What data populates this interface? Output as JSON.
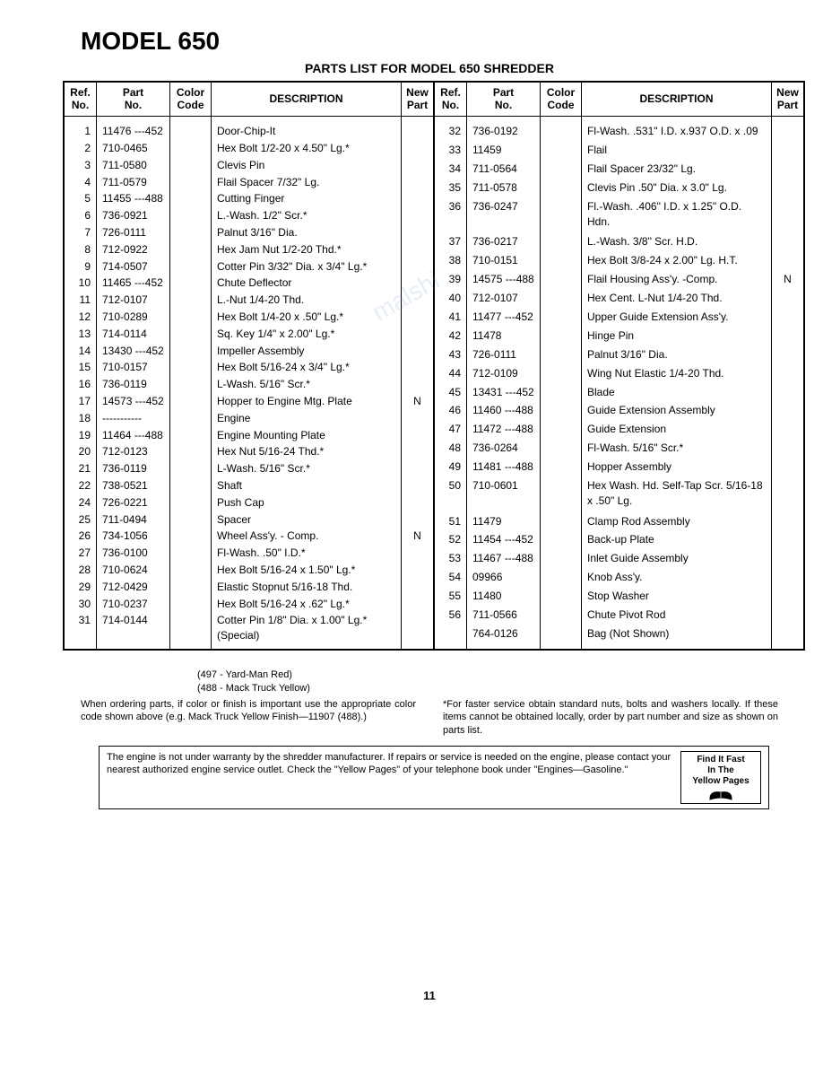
{
  "title": "MODEL 650",
  "subtitle": "PARTS LIST FOR MODEL 650 SHREDDER",
  "headers": {
    "ref": "Ref.\nNo.",
    "part": "Part\nNo.",
    "color": "Color\nCode",
    "desc": "DESCRIPTION",
    "newp": "New\nPart"
  },
  "left_rows": [
    {
      "ref": "1",
      "part": "11476 ---452",
      "color": "",
      "desc": "Door-Chip-It",
      "newp": ""
    },
    {
      "ref": "2",
      "part": "710-0465",
      "color": "",
      "desc": "Hex Bolt 1/2-20 x 4.50\" Lg.*",
      "newp": ""
    },
    {
      "ref": "3",
      "part": "711-0580",
      "color": "",
      "desc": "Clevis Pin",
      "newp": ""
    },
    {
      "ref": "4",
      "part": "711-0579",
      "color": "",
      "desc": "Flail Spacer 7/32\" Lg.",
      "newp": ""
    },
    {
      "ref": "5",
      "part": "11455 ---488",
      "color": "",
      "desc": "Cutting Finger",
      "newp": ""
    },
    {
      "ref": "6",
      "part": "736-0921",
      "color": "",
      "desc": "L.-Wash. 1/2\" Scr.*",
      "newp": ""
    },
    {
      "ref": "7",
      "part": "726-0111",
      "color": "",
      "desc": "Palnut 3/16\" Dia.",
      "newp": ""
    },
    {
      "ref": "8",
      "part": "712-0922",
      "color": "",
      "desc": "Hex Jam Nut 1/2-20 Thd.*",
      "newp": ""
    },
    {
      "ref": "9",
      "part": "714-0507",
      "color": "",
      "desc": "Cotter Pin 3/32\" Dia. x 3/4\" Lg.*",
      "newp": ""
    },
    {
      "ref": "10",
      "part": "11465 ---452",
      "color": "",
      "desc": "Chute Deflector",
      "newp": ""
    },
    {
      "ref": "11",
      "part": "712-0107",
      "color": "",
      "desc": "L.-Nut 1/4-20 Thd.",
      "newp": ""
    },
    {
      "ref": "12",
      "part": "710-0289",
      "color": "",
      "desc": "Hex Bolt 1/4-20 x .50\" Lg.*",
      "newp": ""
    },
    {
      "ref": "13",
      "part": "714-0114",
      "color": "",
      "desc": "Sq. Key 1/4\" x 2.00\" Lg.*",
      "newp": ""
    },
    {
      "ref": "14",
      "part": "13430 ---452",
      "color": "",
      "desc": "Impeller Assembly",
      "newp": ""
    },
    {
      "ref": "15",
      "part": "710-0157",
      "color": "",
      "desc": "Hex Bolt 5/16-24 x 3/4\" Lg.*",
      "newp": ""
    },
    {
      "ref": "16",
      "part": "736-0119",
      "color": "",
      "desc": "L-Wash. 5/16\" Scr.*",
      "newp": ""
    },
    {
      "ref": "17",
      "part": "14573 ---452",
      "color": "",
      "desc": "Hopper to Engine Mtg. Plate",
      "newp": "N"
    },
    {
      "ref": "18",
      "part": "-----------",
      "color": "",
      "desc": "Engine",
      "newp": ""
    },
    {
      "ref": "19",
      "part": "11464 ---488",
      "color": "",
      "desc": "Engine Mounting Plate",
      "newp": ""
    },
    {
      "ref": "20",
      "part": "712-0123",
      "color": "",
      "desc": "Hex Nut 5/16-24 Thd.*",
      "newp": ""
    },
    {
      "ref": "21",
      "part": "736-0119",
      "color": "",
      "desc": "L-Wash. 5/16\" Scr.*",
      "newp": ""
    },
    {
      "ref": "22",
      "part": "738-0521",
      "color": "",
      "desc": "Shaft",
      "newp": ""
    },
    {
      "ref": "24",
      "part": "726-0221",
      "color": "",
      "desc": "Push Cap",
      "newp": ""
    },
    {
      "ref": "25",
      "part": "711-0494",
      "color": "",
      "desc": "Spacer",
      "newp": ""
    },
    {
      "ref": "26",
      "part": "734-1056",
      "color": "",
      "desc": "Wheel Ass'y. - Comp.",
      "newp": "N"
    },
    {
      "ref": "27",
      "part": "736-0100",
      "color": "",
      "desc": "Fl-Wash. .50\" I.D.*",
      "newp": ""
    },
    {
      "ref": "28",
      "part": "710-0624",
      "color": "",
      "desc": "Hex Bolt 5/16-24 x 1.50\" Lg.*",
      "newp": ""
    },
    {
      "ref": "29",
      "part": "712-0429",
      "color": "",
      "desc": "Elastic Stopnut 5/16-18 Thd.",
      "newp": ""
    },
    {
      "ref": "30",
      "part": "710-0237",
      "color": "",
      "desc": "Hex Bolt 5/16-24 x .62\" Lg.*",
      "newp": ""
    },
    {
      "ref": "31",
      "part": "714-0144",
      "color": "",
      "desc": "Cotter Pin 1/8\" Dia. x 1.00\" Lg.* (Special)",
      "newp": ""
    }
  ],
  "right_rows": [
    {
      "ref": "32",
      "part": "736-0192",
      "color": "",
      "desc": "Fl-Wash. .531\" I.D. x.937 O.D. x .09",
      "newp": ""
    },
    {
      "ref": "33",
      "part": "11459",
      "color": "",
      "desc": "Flail",
      "newp": ""
    },
    {
      "ref": "34",
      "part": "711-0564",
      "color": "",
      "desc": "Flail Spacer 23/32\" Lg.",
      "newp": ""
    },
    {
      "ref": "35",
      "part": "711-0578",
      "color": "",
      "desc": "Clevis Pin .50\" Dia. x 3.0\" Lg.",
      "newp": ""
    },
    {
      "ref": "36",
      "part": "736-0247",
      "color": "",
      "desc": "Fl.-Wash. .406\" I.D. x 1.25\" O.D. Hdn.",
      "newp": ""
    },
    {
      "ref": "37",
      "part": "736-0217",
      "color": "",
      "desc": "L.-Wash. 3/8\" Scr. H.D.",
      "newp": ""
    },
    {
      "ref": "38",
      "part": "710-0151",
      "color": "",
      "desc": "Hex Bolt 3/8-24 x 2.00\" Lg. H.T.",
      "newp": ""
    },
    {
      "ref": "39",
      "part": "14575 ---488",
      "color": "",
      "desc": "Flail Housing Ass'y. -Comp.",
      "newp": "N"
    },
    {
      "ref": "40",
      "part": "712-0107",
      "color": "",
      "desc": "Hex Cent. L-Nut 1/4-20 Thd.",
      "newp": ""
    },
    {
      "ref": "41",
      "part": "11477 ---452",
      "color": "",
      "desc": "Upper Guide Extension Ass'y.",
      "newp": ""
    },
    {
      "ref": "42",
      "part": "11478",
      "color": "",
      "desc": "Hinge Pin",
      "newp": ""
    },
    {
      "ref": "43",
      "part": "726-0111",
      "color": "",
      "desc": "Palnut 3/16\" Dia.",
      "newp": ""
    },
    {
      "ref": "44",
      "part": "712-0109",
      "color": "",
      "desc": "Wing Nut Elastic 1/4-20 Thd.",
      "newp": ""
    },
    {
      "ref": "45",
      "part": "13431 ---452",
      "color": "",
      "desc": "Blade",
      "newp": ""
    },
    {
      "ref": "46",
      "part": "11460 ---488",
      "color": "",
      "desc": "Guide Extension Assembly",
      "newp": ""
    },
    {
      "ref": "47",
      "part": "11472 ---488",
      "color": "",
      "desc": "Guide Extension",
      "newp": ""
    },
    {
      "ref": "48",
      "part": "736-0264",
      "color": "",
      "desc": "Fl-Wash. 5/16\" Scr.*",
      "newp": ""
    },
    {
      "ref": "49",
      "part": "11481 ---488",
      "color": "",
      "desc": "Hopper Assembly",
      "newp": ""
    },
    {
      "ref": "50",
      "part": "710-0601",
      "color": "",
      "desc": "Hex Wash. Hd. Self-Tap Scr. 5/16-18 x .50\" Lg.",
      "newp": ""
    },
    {
      "ref": "51",
      "part": "11479",
      "color": "",
      "desc": "Clamp Rod Assembly",
      "newp": ""
    },
    {
      "ref": "52",
      "part": "11454 ---452",
      "color": "",
      "desc": "Back-up Plate",
      "newp": ""
    },
    {
      "ref": "53",
      "part": "11467 ---488",
      "color": "",
      "desc": "Inlet Guide Assembly",
      "newp": ""
    },
    {
      "ref": "54",
      "part": "09966",
      "color": "",
      "desc": "Knob Ass'y.",
      "newp": ""
    },
    {
      "ref": "55",
      "part": "11480",
      "color": "",
      "desc": "Stop Washer",
      "newp": ""
    },
    {
      "ref": "56",
      "part": "711-0566",
      "color": "",
      "desc": "Chute Pivot Rod",
      "newp": ""
    },
    {
      "ref": "",
      "part": "764-0126",
      "color": "",
      "desc": "Bag (Not Shown)",
      "newp": ""
    }
  ],
  "legend": [
    "(497 - Yard-Man Red)",
    "(488 - Mack Truck Yellow)"
  ],
  "ordering_note": "When ordering parts, if color or finish is important use the appropriate color code shown above (e.g. Mack Truck Yellow Finish—11907 (488).)",
  "faster_service": "*For faster service obtain standard nuts, bolts and washers locally. If these items cannot be obtained locally, order by part number and size as shown on parts list.",
  "engine_note": "The engine is not under warranty by the shredder manufacturer. If repairs or service is needed on the engine, please contact your nearest authorized engine service outlet. Check the \"Yellow Pages\" of your telephone book under \"Engines—Gasoline.\"",
  "find_fast": "Find It Fast In The Yellow Pages",
  "page_number": "11"
}
